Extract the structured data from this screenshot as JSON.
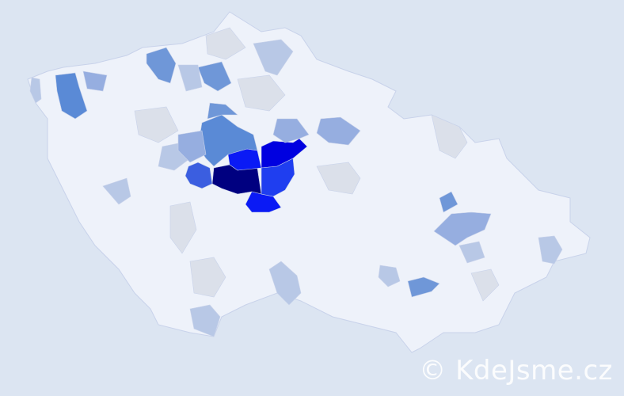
{
  "map": {
    "colors": {
      "background": "#dce5f2",
      "base": "#eef2fa",
      "border": "#c8d2ea",
      "levels": [
        "#dbe0ea",
        "#b8c8e6",
        "#96aee0",
        "#6f97d8",
        "#5a8ad6",
        "#3b5ee0",
        "#1f3ef0",
        "#0a1af5",
        "#0000e0",
        "#000080"
      ]
    }
  },
  "watermark": "© KdeJsme.cz"
}
